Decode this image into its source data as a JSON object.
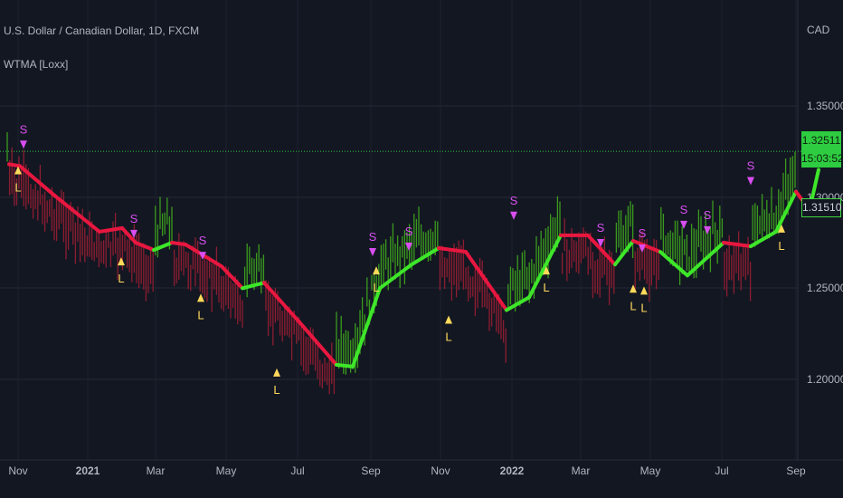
{
  "header": {
    "title": "U.S. Dollar / Canadian Dollar, 1D, FXCM",
    "indicator": "WTMA [Loxx]",
    "currency": "CAD"
  },
  "price_tags": {
    "last_price": "1.32511",
    "countdown": "15:03:52",
    "wtma_value": "1.31510"
  },
  "colors": {
    "background": "#131722",
    "bull": "#3ee62a",
    "bear": "#e8173f",
    "bull_candle": "#3a9b1d",
    "bear_candle": "#8c1d31",
    "long_marker": "#ffd95a",
    "short_marker": "#d84ef0",
    "grid": "#262a35",
    "axis_text": "#b2b5be"
  },
  "chart_data": {
    "type": "line",
    "title": "U.S. Dollar / Canadian Dollar, 1D, FXCM",
    "indicator": "WTMA [Loxx]",
    "y_ticks": [
      "1.35000",
      "1.30000",
      "1.25000",
      "1.20000"
    ],
    "ylim": [
      1.18,
      1.385
    ],
    "x_ticks": [
      "Nov",
      "2021",
      "Mar",
      "May",
      "Jul",
      "Sep",
      "Nov",
      "2022",
      "Mar",
      "May",
      "Jul",
      "Sep"
    ],
    "horizontal_line": 1.3251,
    "wtma": [
      {
        "x": "Oct 25",
        "y": 1.318,
        "trend": "bear"
      },
      {
        "x": "Nov",
        "y": 1.317,
        "trend": "bear"
      },
      {
        "x": "mid Nov",
        "y": 1.301,
        "trend": "bear"
      },
      {
        "x": "Dec",
        "y": 1.281,
        "trend": "bear"
      },
      {
        "x": "mid Dec",
        "y": 1.283,
        "trend": "bear"
      },
      {
        "x": "2021",
        "y": 1.275,
        "trend": "bear"
      },
      {
        "x": "mid Jan",
        "y": 1.271,
        "trend": "bear"
      },
      {
        "x": "Feb",
        "y": 1.275,
        "trend": "bull"
      },
      {
        "x": "mid Feb",
        "y": 1.274,
        "trend": "bear"
      },
      {
        "x": "Mar",
        "y": 1.262,
        "trend": "bear"
      },
      {
        "x": "Apr",
        "y": 1.25,
        "trend": "bear"
      },
      {
        "x": "mid Apr",
        "y": 1.253,
        "trend": "bull"
      },
      {
        "x": "May",
        "y": 1.232,
        "trend": "bear"
      },
      {
        "x": "Jun",
        "y": 1.208,
        "trend": "bear"
      },
      {
        "x": "mid Jun",
        "y": 1.207,
        "trend": "bull"
      },
      {
        "x": "Jul",
        "y": 1.25,
        "trend": "bull"
      },
      {
        "x": "Aug",
        "y": 1.263,
        "trend": "bull"
      },
      {
        "x": "Sep",
        "y": 1.272,
        "trend": "bull"
      },
      {
        "x": "Oct",
        "y": 1.27,
        "trend": "bear"
      },
      {
        "x": "Nov",
        "y": 1.238,
        "trend": "bear"
      },
      {
        "x": "mid Nov",
        "y": 1.245,
        "trend": "bull"
      },
      {
        "x": "2022",
        "y": 1.279,
        "trend": "bull"
      },
      {
        "x": "Feb",
        "y": 1.279,
        "trend": "bear"
      },
      {
        "x": "Mar",
        "y": 1.263,
        "trend": "bear"
      },
      {
        "x": "mid Mar",
        "y": 1.276,
        "trend": "bull"
      },
      {
        "x": "Apr",
        "y": 1.27,
        "trend": "bear"
      },
      {
        "x": "May",
        "y": 1.257,
        "trend": "bull"
      },
      {
        "x": "Jun",
        "y": 1.275,
        "trend": "bull"
      },
      {
        "x": "mid Jun",
        "y": 1.273,
        "trend": "bear"
      },
      {
        "x": "Jul",
        "y": 1.281,
        "trend": "bull"
      },
      {
        "x": "Aug",
        "y": 1.303,
        "trend": "bull"
      },
      {
        "x": "mid Aug",
        "y": 1.293,
        "trend": "bear"
      },
      {
        "x": "Sep",
        "y": 1.315,
        "trend": "bull"
      }
    ],
    "signals": [
      {
        "type": "S",
        "x": "Oct 27",
        "y": 1.331
      },
      {
        "type": "L",
        "x": "Oct 25",
        "y": 1.317
      },
      {
        "type": "S",
        "x": "Feb",
        "y": 1.282
      },
      {
        "type": "L",
        "x": "Feb",
        "y": 1.267
      },
      {
        "type": "S",
        "x": "Apr",
        "y": 1.27
      },
      {
        "type": "L",
        "x": "Apr",
        "y": 1.247
      },
      {
        "type": "L",
        "x": "Jun",
        "y": 1.206
      },
      {
        "type": "S",
        "x": "Aug",
        "y": 1.272
      },
      {
        "type": "L",
        "x": "Aug",
        "y": 1.262
      },
      {
        "type": "S",
        "x": "Sep",
        "y": 1.275
      },
      {
        "type": "L",
        "x": "Nov",
        "y": 1.235
      },
      {
        "type": "S",
        "x": "Jan",
        "y": 1.292
      },
      {
        "type": "L",
        "x": "Mar",
        "y": 1.262
      },
      {
        "type": "S",
        "x": "Apr",
        "y": 1.277
      },
      {
        "type": "S",
        "x": "Apr",
        "y": 1.274
      },
      {
        "type": "L",
        "x": "Apr",
        "y": 1.252
      },
      {
        "type": "L",
        "x": "May",
        "y": 1.251
      },
      {
        "type": "S",
        "x": "May",
        "y": 1.287
      },
      {
        "type": "S",
        "x": "Jun",
        "y": 1.284
      },
      {
        "type": "S",
        "x": "Aug",
        "y": 1.311
      },
      {
        "type": "L",
        "x": "Aug",
        "y": 1.285
      }
    ]
  }
}
